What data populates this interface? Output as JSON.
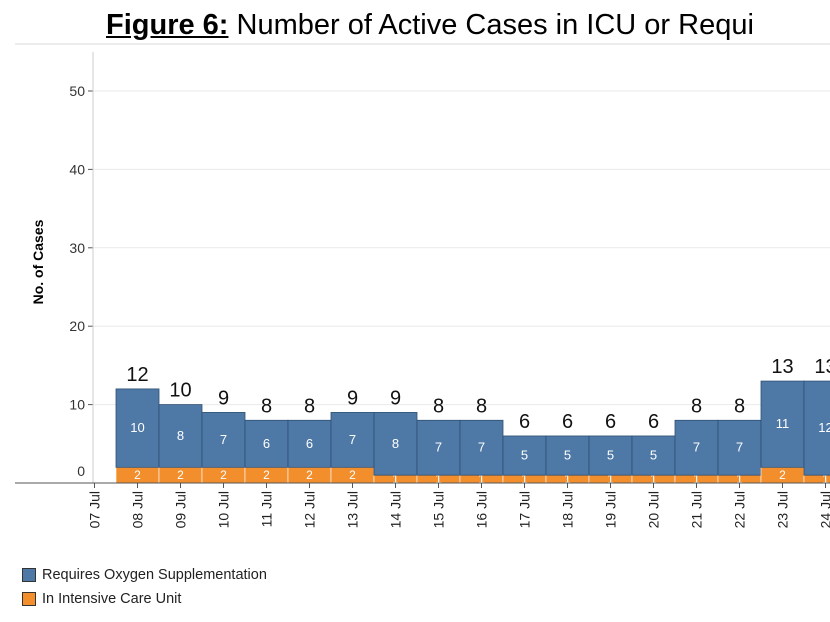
{
  "title": {
    "prefix": "Figure 6:",
    "text": "Number of Active Cases in ICU or Requi"
  },
  "colors": {
    "oxygen": "#4e79a7",
    "icu": "#f28e2b",
    "grid": "#e9e9e9",
    "axis": "#555555"
  },
  "chart_data": {
    "type": "bar",
    "stacked": true,
    "ylabel": "No. of Cases",
    "ylim": [
      0,
      55
    ],
    "yticks": [
      0,
      10,
      20,
      30,
      40,
      50
    ],
    "grid": true,
    "legend_position": "bottom-left",
    "categories": [
      "07 Jul",
      "08 Jul",
      "09 Jul",
      "10 Jul",
      "11 Jul",
      "12 Jul",
      "13 Jul",
      "14 Jul",
      "15 Jul",
      "16 Jul",
      "17 Jul",
      "18 Jul",
      "19 Jul",
      "20 Jul",
      "21 Jul",
      "22 Jul",
      "23 Jul",
      "24 Jul"
    ],
    "series": [
      {
        "name": "In Intensive Care Unit",
        "values": [
          null,
          2,
          2,
          2,
          2,
          2,
          2,
          1,
          1,
          1,
          1,
          1,
          1,
          1,
          1,
          1,
          2,
          1
        ]
      },
      {
        "name": "Requires Oxygen Supplementation",
        "values": [
          null,
          10,
          8,
          7,
          6,
          6,
          7,
          8,
          7,
          7,
          5,
          5,
          5,
          5,
          7,
          7,
          11,
          12
        ]
      }
    ],
    "totals": [
      null,
      12,
      10,
      9,
      8,
      8,
      9,
      9,
      8,
      8,
      6,
      6,
      6,
      6,
      8,
      8,
      13,
      13
    ]
  }
}
